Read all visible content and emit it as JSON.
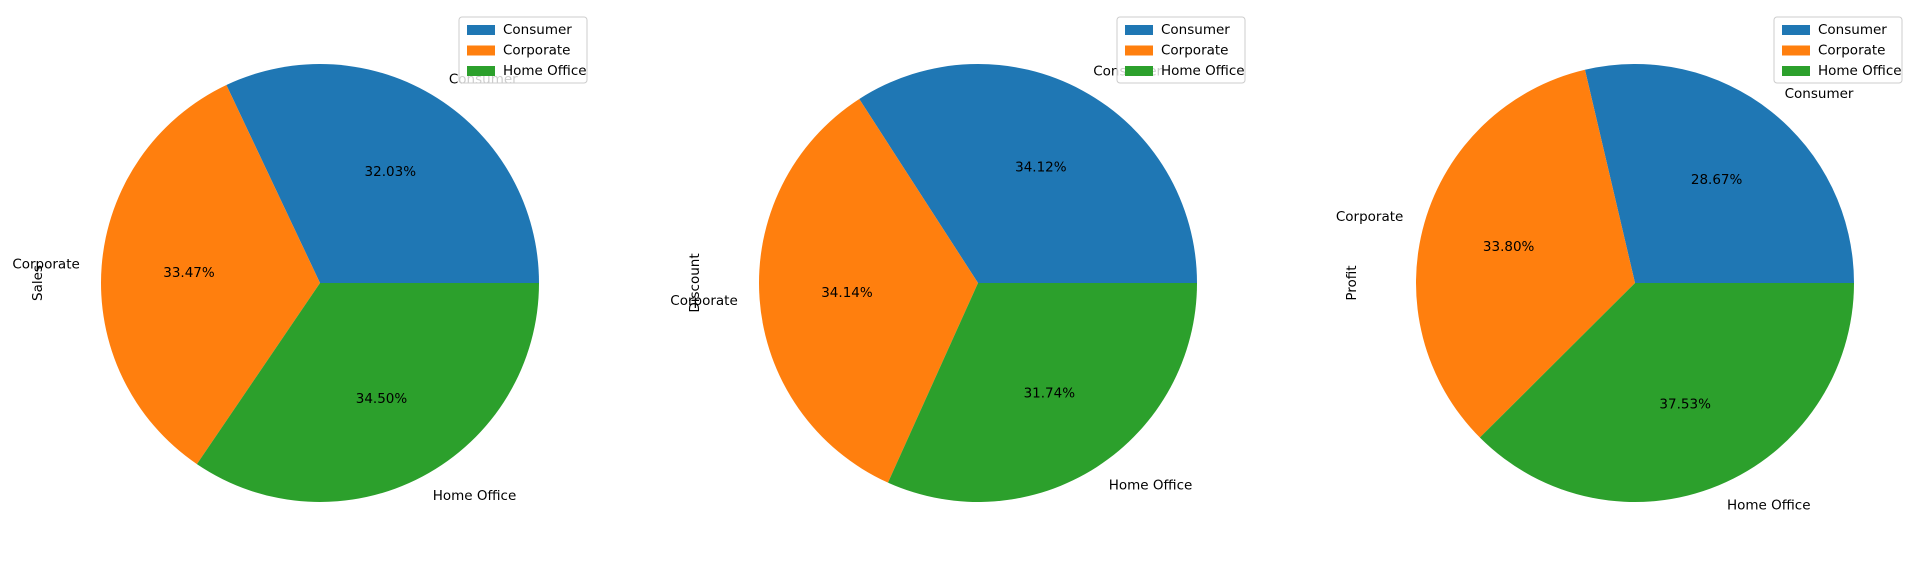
{
  "chart_data": [
    {
      "type": "pie",
      "ylabel": "Sales",
      "categories": [
        "Consumer",
        "Corporate",
        "Home Office"
      ],
      "values": [
        32.03,
        33.47,
        34.5
      ],
      "value_labels": [
        "32.03%",
        "33.47%",
        "34.50%"
      ],
      "colors": [
        "#1f77b4",
        "#ff7f0e",
        "#2ca02c"
      ],
      "legend": {
        "placement": "upper-right",
        "entries": [
          "Consumer",
          "Corporate",
          "Home Office"
        ]
      },
      "start_angle_deg": 0,
      "direction": "counterclockwise"
    },
    {
      "type": "pie",
      "ylabel": "Discount",
      "categories": [
        "Consumer",
        "Corporate",
        "Home Office"
      ],
      "values": [
        34.12,
        34.14,
        31.74
      ],
      "value_labels": [
        "34.12%",
        "34.14%",
        "31.74%"
      ],
      "colors": [
        "#1f77b4",
        "#ff7f0e",
        "#2ca02c"
      ],
      "legend": {
        "placement": "upper-right",
        "entries": [
          "Consumer",
          "Corporate",
          "Home Office"
        ]
      },
      "start_angle_deg": 0,
      "direction": "counterclockwise"
    },
    {
      "type": "pie",
      "ylabel": "Profit",
      "categories": [
        "Consumer",
        "Corporate",
        "Home Office"
      ],
      "values": [
        28.67,
        33.8,
        37.53
      ],
      "value_labels": [
        "28.67%",
        "33.80%",
        "37.53%"
      ],
      "colors": [
        "#1f77b4",
        "#ff7f0e",
        "#2ca02c"
      ],
      "legend": {
        "placement": "upper-right",
        "entries": [
          "Consumer",
          "Corporate",
          "Home Office"
        ]
      },
      "start_angle_deg": 0,
      "direction": "counterclockwise"
    }
  ]
}
